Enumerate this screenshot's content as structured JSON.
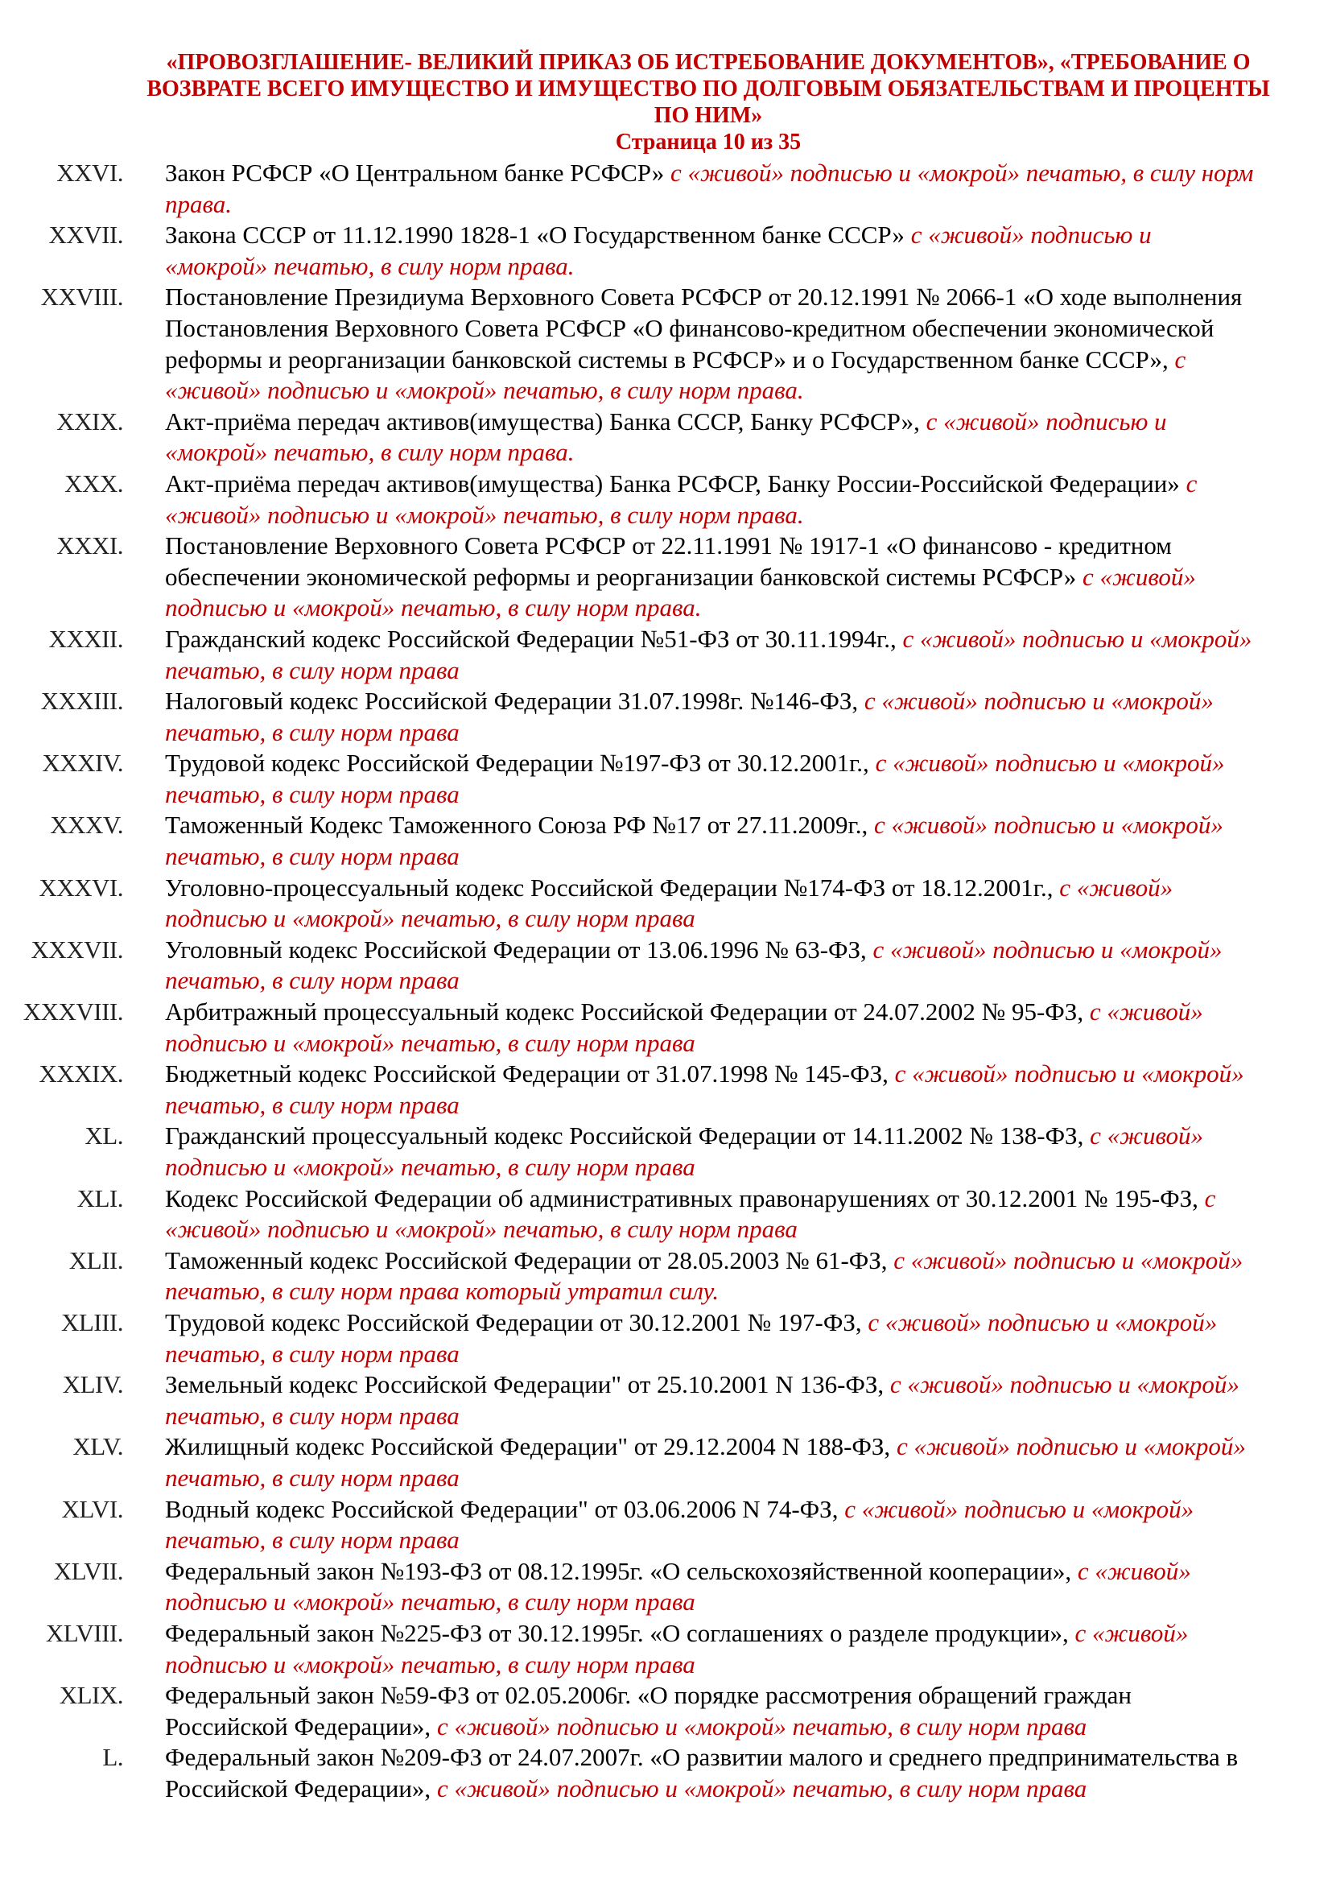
{
  "header": {
    "title": "«ПРОВОЗГЛАШЕНИЕ- ВЕЛИКИЙ ПРИКАЗ ОБ ИСТРЕБОВАНИЕ ДОКУМЕНТОВ», «ТРЕБОВАНИЕ О ВОЗВРАТЕ ВСЕГО ИМУЩЕСТВО И ИМУЩЕСТВО ПО ДОЛГОВЫМ ОБЯЗАТЕЛЬСТВАМ И ПРОЦЕНТЫ ПО НИМ»",
    "page": "Страница 10 из 35"
  },
  "colors": {
    "accent": "#c00000",
    "text": "#000000"
  },
  "items": [
    {
      "num": "XXVI.",
      "text": "Закон РСФСР «О Центральном банке РСФСР» ",
      "note": "с «живой» подписью и «мокрой» печатью, в силу норм права."
    },
    {
      "num": "XXVII.",
      "text": "Закона СССР от 11.12.1990 1828-1 «О Государственном банке СССР» ",
      "note": "с «живой» подписью и «мокрой» печатью, в силу норм права."
    },
    {
      "num": "XXVIII.",
      "text": "Постановление Президиума Верховного Совета РСФСР от 20.12.1991 № 2066-1 «О ходе выполнения Постановления Верховного Совета РСФСР «О финансово-кредитном обеспечении экономической реформы и реорганизации банковской системы в РСФСР» и о Государственном банке СССР», ",
      "note": "с «живой» подписью и «мокрой» печатью, в силу норм права."
    },
    {
      "num": "XXIX.",
      "text": "Акт-приёма передач активов(имущества) Банка СССР, Банку РСФСР», ",
      "note": "с «живой» подписью и «мокрой» печатью, в силу норм права."
    },
    {
      "num": "XXX.",
      "text": "Акт-приёма передач активов(имущества) Банка РСФСР, Банку России-Российской Федерации» ",
      "note": "с «живой» подписью и «мокрой» печатью, в силу норм права."
    },
    {
      "num": "XXXI.",
      "text": "Постановление Верховного Совета РСФСР от 22.11.1991 № 1917-1 «О финансово - кредитном обеспечении экономической реформы и реорганизации банковской системы РСФСР» ",
      "note": "с «живой» подписью и «мокрой» печатью, в силу норм права."
    },
    {
      "num": "XXXII.",
      "text": "Гражданский кодекс Российской Федерации №51-ФЗ от 30.11.1994г., ",
      "note": "с «живой» подписью и «мокрой» печатью, в силу норм права"
    },
    {
      "num": "XXXIII.",
      "text": "Налоговый кодекс Российской Федерации 31.07.1998г. №146-ФЗ, ",
      "note": "с «живой» подписью и «мокрой» печатью, в силу норм права"
    },
    {
      "num": "XXXIV.",
      "text": "Трудовой кодекс Российской Федерации №197-ФЗ от 30.12.2001г., ",
      "note": "с «живой» подписью и «мокрой» печатью, в силу норм права"
    },
    {
      "num": "XXXV.",
      "text": "Таможенный Кодекс Таможенного Союза РФ №17 от 27.11.2009г., ",
      "note": "с «живой» подписью и «мокрой» печатью, в силу норм права"
    },
    {
      "num": "XXXVI.",
      "text": "Уголовно-процессуальный кодекс Российской Федерации №174-ФЗ от 18.12.2001г., ",
      "note": "с «живой» подписью и «мокрой» печатью, в силу норм права"
    },
    {
      "num": "XXXVII.",
      "text": "Уголовный кодекс Российской Федерации от 13.06.1996 № 63-ФЗ, ",
      "note": "с «живой» подписью и «мокрой» печатью, в силу норм права"
    },
    {
      "num": "XXXVIII.",
      "text": "Арбитражный процессуальный кодекс Российской Федерации от 24.07.2002 № 95-ФЗ, ",
      "note": "с «живой» подписью и «мокрой» печатью, в силу норм права"
    },
    {
      "num": "XXXIX.",
      "text": "Бюджетный кодекс Российской Федерации от 31.07.1998 № 145-ФЗ, ",
      "note": "с «живой» подписью и «мокрой» печатью, в силу норм права"
    },
    {
      "num": "XL.",
      "text": "Гражданский процессуальный кодекс Российской Федерации от 14.11.2002 № 138-ФЗ, ",
      "note": "с «живой» подписью и «мокрой» печатью, в силу норм права"
    },
    {
      "num": "XLI.",
      "text": "Кодекс Российской Федерации об административных правонарушениях от 30.12.2001 № 195-ФЗ, ",
      "note": "с «живой» подписью и «мокрой» печатью, в силу норм права"
    },
    {
      "num": "XLII.",
      "text": "Таможенный кодекс Российской Федерации от 28.05.2003 № 61-ФЗ, ",
      "note": "с «живой» подписью и «мокрой» печатью, в силу норм права который утратил силу."
    },
    {
      "num": "XLIII.",
      "text": "Трудовой кодекс Российской Федерации от 30.12.2001 № 197-ФЗ, ",
      "note": "с «живой» подписью и «мокрой» печатью, в силу норм права"
    },
    {
      "num": "XLIV.",
      "text": "Земельный кодекс Российской Федерации\" от 25.10.2001 N 136-ФЗ, ",
      "note": "с «живой» подписью и «мокрой» печатью, в силу норм права"
    },
    {
      "num": "XLV.",
      "text": "Жилищный кодекс Российской Федерации\" от 29.12.2004 N 188-ФЗ, ",
      "note": "с «живой» подписью и «мокрой» печатью, в силу норм права"
    },
    {
      "num": "XLVI.",
      "text": "Водный кодекс Российской Федерации\" от 03.06.2006 N 74-ФЗ, ",
      "note": "с «живой» подписью и «мокрой» печатью, в силу норм права"
    },
    {
      "num": "XLVII.",
      "text": "Федеральный закон №193-ФЗ от 08.12.1995г. «О сельскохозяйственной кооперации», ",
      "note": "с «живой» подписью и «мокрой» печатью, в силу норм права"
    },
    {
      "num": "XLVIII.",
      "text": "Федеральный закон №225-ФЗ от 30.12.1995г. «О соглашениях о разделе продукции», ",
      "note": "с «живой» подписью и «мокрой» печатью, в силу норм права"
    },
    {
      "num": "XLIX.",
      "text": "Федеральный закон №59-ФЗ от 02.05.2006г. «О порядке рассмотрения обращений граждан Российской Федерации», ",
      "note": "с «живой» подписью и «мокрой» печатью, в силу норм права"
    },
    {
      "num": "L.",
      "text": "Федеральный закон №209-ФЗ от 24.07.2007г. «О развитии малого и среднего предпринимательства в Российской Федерации», ",
      "note": "с «живой» подписью и «мокрой» печатью, в силу норм права"
    }
  ]
}
